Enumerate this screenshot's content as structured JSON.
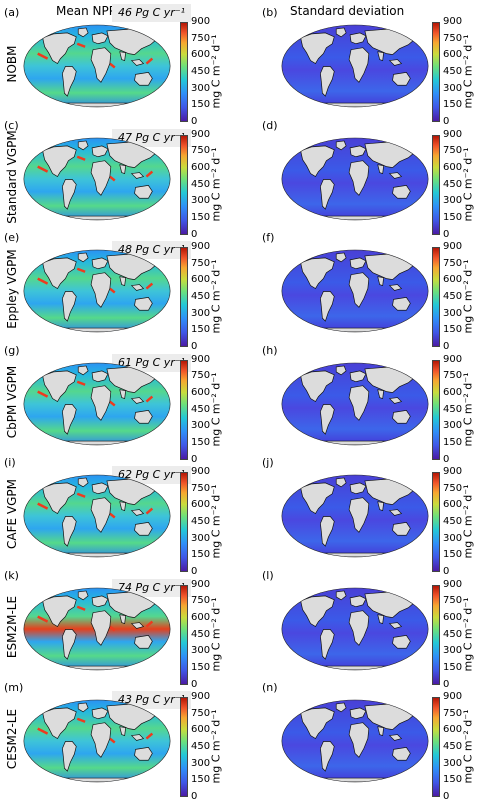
{
  "columns": {
    "left_title": "Mean NPP",
    "right_title": "Standard deviation"
  },
  "colorbar": {
    "ticks": [
      "900",
      "750",
      "600",
      "450",
      "300",
      "150",
      "0"
    ],
    "unit_label": "mg C m⁻² d⁻¹",
    "colormap": "rainbow (purple-blue-cyan-green-yellow-red)"
  },
  "rows": [
    {
      "model": "NOBM",
      "total": "46 Pg C yr⁻¹",
      "mean_letter": "(a)",
      "std_letter": "(b)"
    },
    {
      "model": "Standard VGPM",
      "total": "47 Pg C yr⁻¹",
      "mean_letter": "(c)",
      "std_letter": "(d)"
    },
    {
      "model": "Eppley VGPM",
      "total": "48 Pg C yr⁻¹",
      "mean_letter": "(e)",
      "std_letter": "(f)"
    },
    {
      "model": "CbPM VGPM",
      "total": "61 Pg C yr⁻¹",
      "mean_letter": "(g)",
      "std_letter": "(h)"
    },
    {
      "model": "CAFE VGPM",
      "total": "62 Pg C yr⁻¹",
      "mean_letter": "(i)",
      "std_letter": "(j)"
    },
    {
      "model": "ESM2M-LE",
      "total": "74 Pg C yr⁻¹",
      "mean_letter": "(k)",
      "std_letter": "(l)"
    },
    {
      "model": "CESM2-LE",
      "total": "43 Pg C yr⁻¹",
      "mean_letter": "(m)",
      "std_letter": "(n)"
    }
  ]
}
